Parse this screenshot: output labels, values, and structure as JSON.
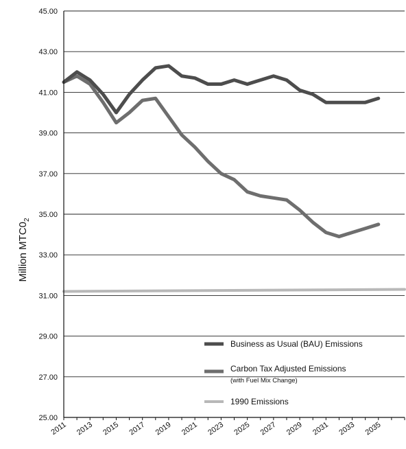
{
  "chart_data": {
    "type": "line",
    "ylabel": "Million MTC0",
    "ylabel_sub": "2",
    "ylim": [
      25,
      45
    ],
    "yticks": [
      "25.00",
      "27.00",
      "29.00",
      "31.00",
      "33.00",
      "35.00",
      "37.00",
      "39.00",
      "41.00",
      "43.00",
      "45.00"
    ],
    "x_tick_labels": [
      "2011",
      "2013",
      "2015",
      "2017",
      "2019",
      "2021",
      "2023",
      "2025",
      "2027",
      "2029",
      "2031",
      "2033",
      "2035"
    ],
    "x_range": [
      2011,
      2037
    ],
    "grid": true,
    "legend_position": "bottom-right",
    "series": [
      {
        "name": "Business as Usual (BAU) Emissions",
        "color": "#4d4d4d",
        "x": [
          2011,
          2012,
          2013,
          2014,
          2015,
          2016,
          2017,
          2018,
          2019,
          2020,
          2021,
          2022,
          2023,
          2024,
          2025,
          2026,
          2027,
          2028,
          2029,
          2030,
          2031,
          2032,
          2033,
          2034,
          2035
        ],
        "values": [
          41.5,
          42.0,
          41.6,
          40.9,
          40.0,
          40.9,
          41.6,
          42.2,
          42.3,
          41.8,
          41.7,
          41.4,
          41.4,
          41.6,
          41.4,
          41.6,
          41.8,
          41.6,
          41.1,
          40.9,
          40.5,
          40.5,
          40.5,
          40.5,
          40.7
        ]
      },
      {
        "name": "Carbon Tax Adjusted Emissions",
        "name_note": "(with Fuel Mix Change)",
        "color": "#6e6e6e",
        "x": [
          2011,
          2012,
          2013,
          2014,
          2015,
          2016,
          2017,
          2018,
          2019,
          2020,
          2021,
          2022,
          2023,
          2024,
          2025,
          2026,
          2027,
          2028,
          2029,
          2030,
          2031,
          2032,
          2033,
          2034,
          2035
        ],
        "values": [
          41.5,
          41.8,
          41.4,
          40.5,
          39.5,
          40.0,
          40.6,
          40.7,
          39.8,
          38.9,
          38.3,
          37.6,
          37.0,
          36.7,
          36.1,
          35.9,
          35.8,
          35.7,
          35.2,
          34.6,
          34.1,
          33.9,
          34.1,
          34.3,
          34.5
        ]
      },
      {
        "name": "1990 Emissions",
        "color": "#b8b8b8",
        "x": [
          2011,
          2037
        ],
        "values": [
          31.2,
          31.3
        ]
      }
    ]
  }
}
